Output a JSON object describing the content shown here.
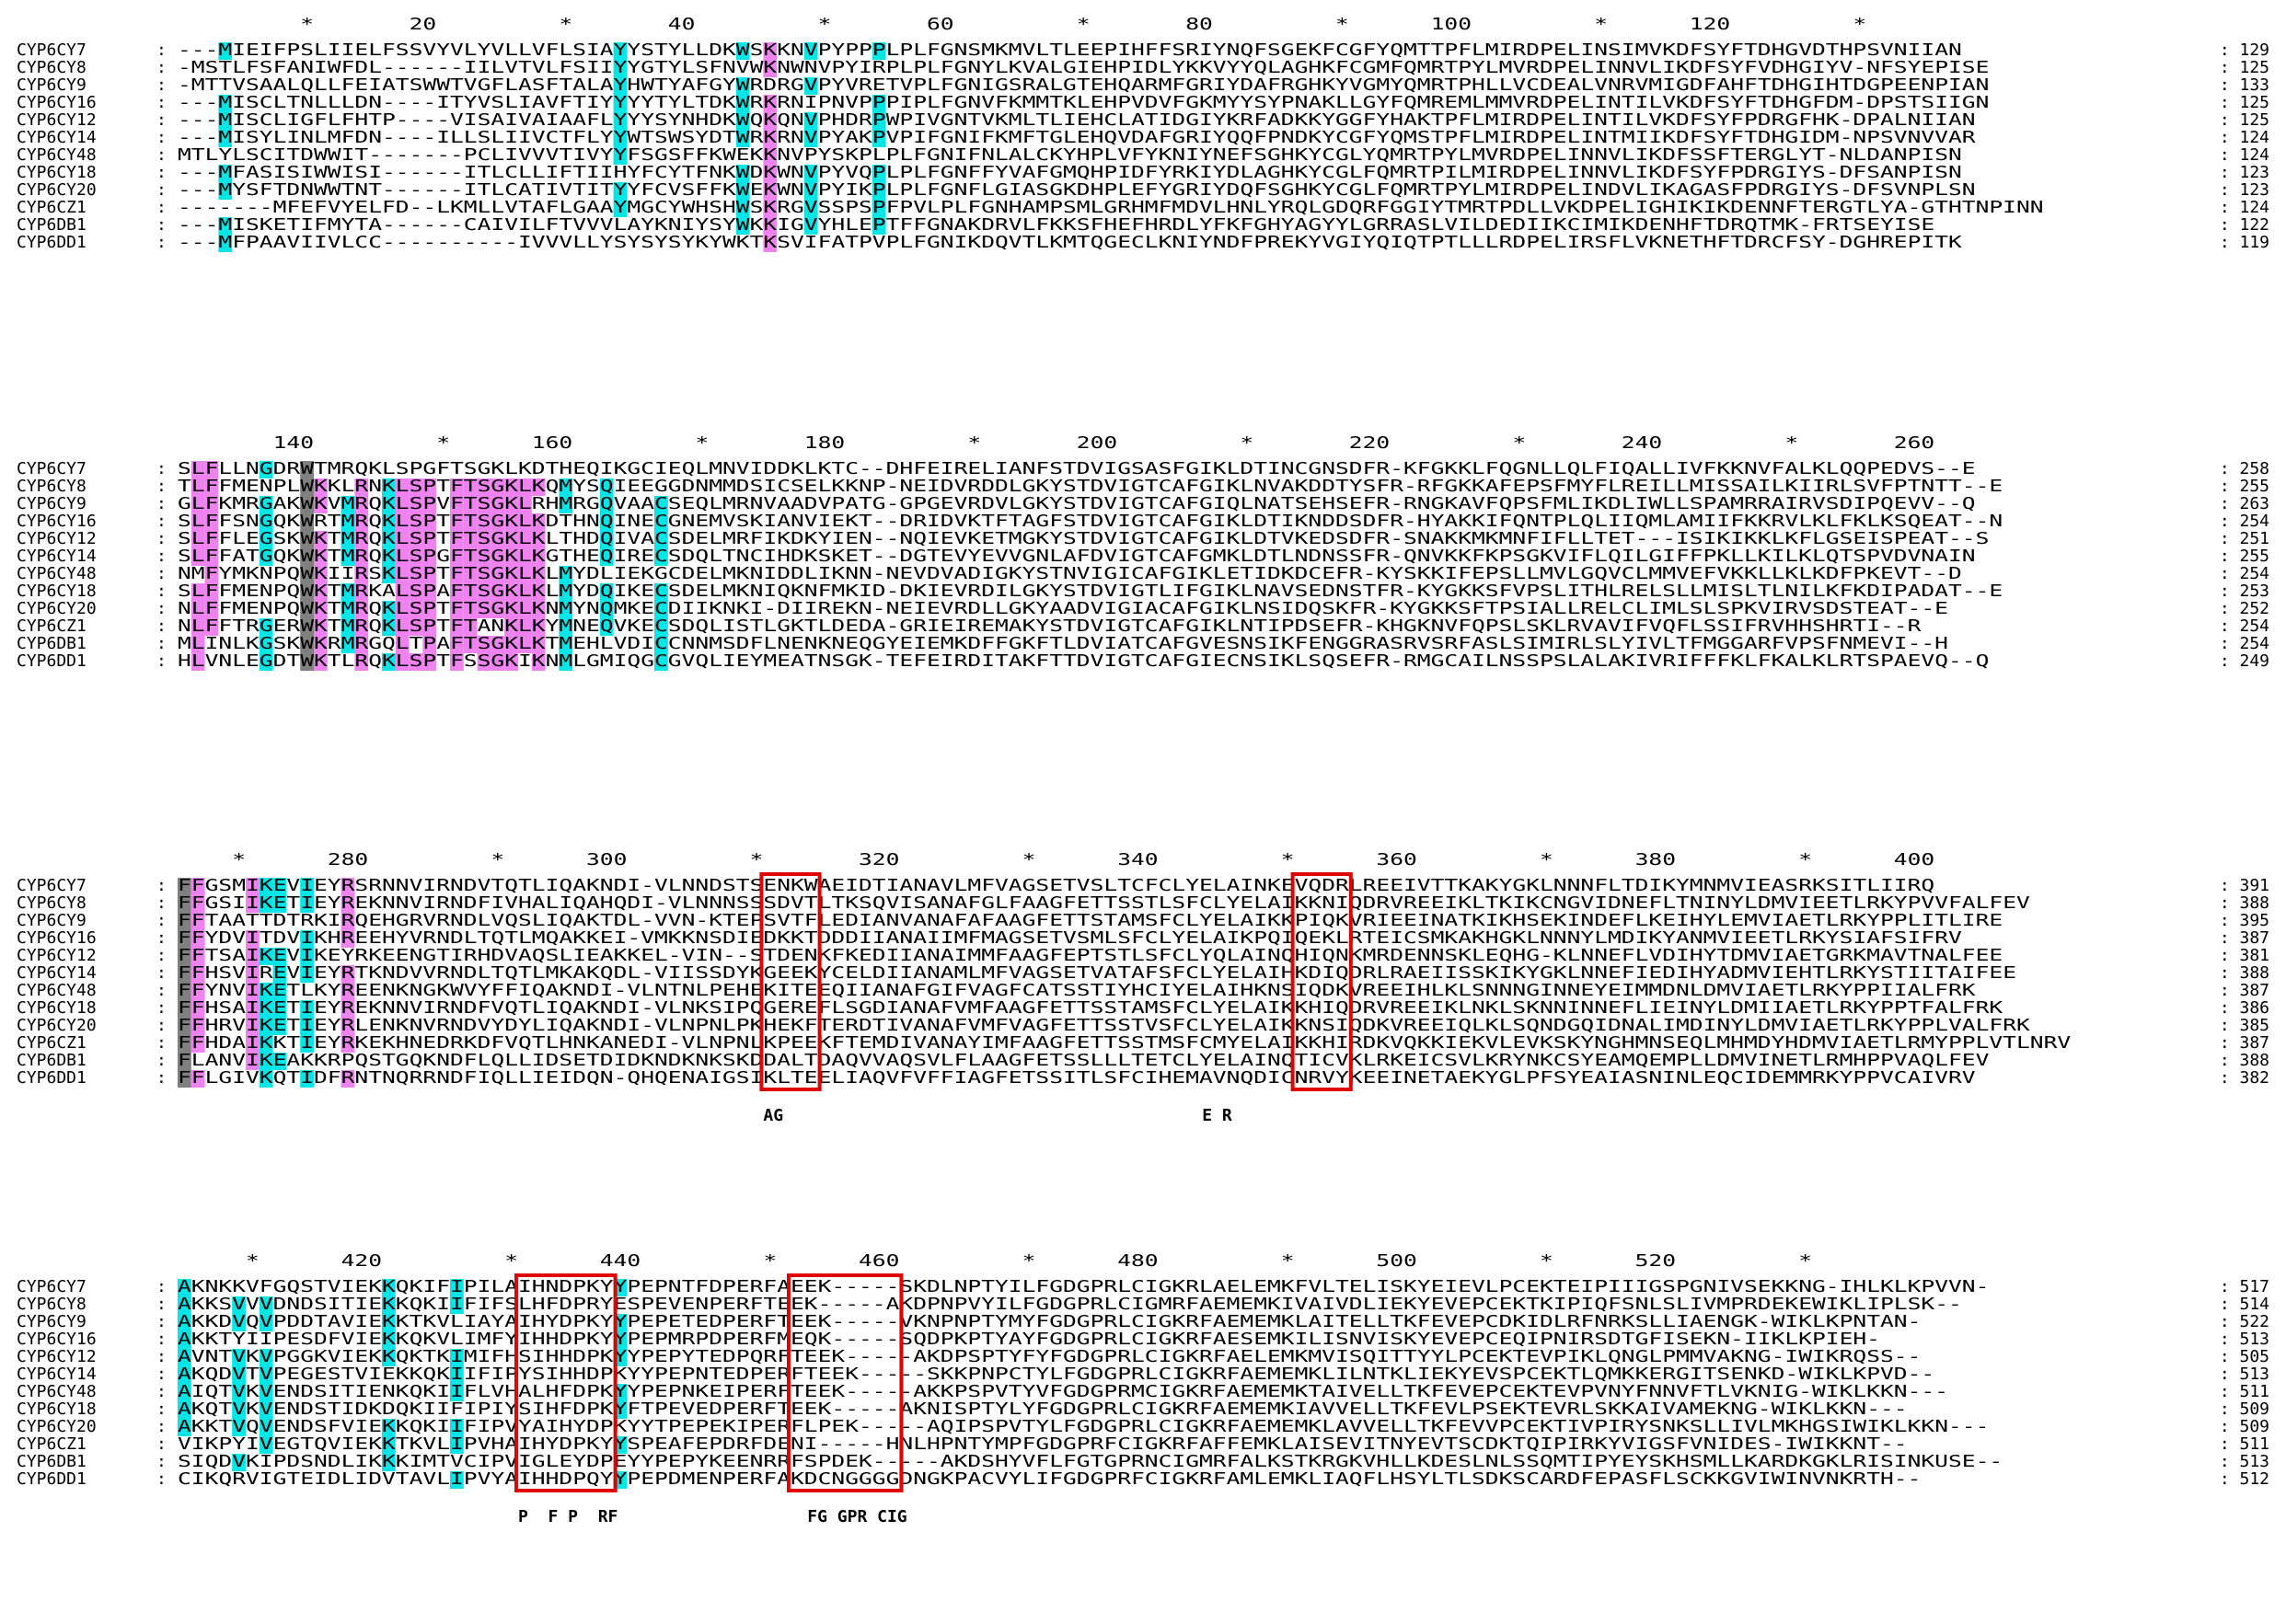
{
  "blocks": [
    {
      "ruler": "         *       20         *       40         *       60         *       80         *      100         *      120         *",
      "rows": [
        {
          "name": "CYP6CY7",
          "seq": "---MIEIFPSLIIELFSSVYVLYVLLVFLSIAYYSTYLLDKWSKKNVPYPPPLPLFGNSMKMVLTLEEPIHFFSRIYNQFSGEKFCGFYQMTTPFLMIRDPELINSIMVKDFSYFTDHGVDTHPSVNIIAN",
          "num": "129"
        },
        {
          "name": "CYP6CY8",
          "seq": "-MSTLFSFANIWFDL------IILVTVLFSIIYYGTYLSFNVWKNWNVPYIRPLPLFGNYLKVALGIEHPIDLYKKVYYQLAGHKFCGMFQMRTPYLMVRDPELINNVLIKDFSYFVDHGIYV-NFSYEPISE",
          "num": "125"
        },
        {
          "name": "CYP6CY9",
          "seq": "-MTTVSAALQLLFEIATSWWTVGFLASFTALAYHWTYAFGYWRDRGVPYVRETVPLFGNIGSRALGTEHQARMFGRIYDAFRGHKYVGMYQMRTPHLLVCDEALVNRVMIGDFAHFTDHGIHTDGPEENPIAN",
          "num": "133"
        },
        {
          "name": "CYP6CY16",
          "seq": "---MISCLTNLLLDN----ITYVSLIAVFTIYYYYTYLTDKWRKRNIPNVPPPIPLFGNVFKMMTKLEHPVDVFGKMYYSYPNAKLLGYFQMREMLMMVRDPELINTILVKDFSYFTDHGFDM-DPSTSIIGN",
          "num": "125"
        },
        {
          "name": "CYP6CY12",
          "seq": "---MISCLIGFLFHTP----VISAIVAIAAFLYYYSYNHDKWQKQNVPHDRPWPIVGNTVKMLTLIEHCLATIDGIYKRFADKKYGGFYHAKTPFLMIRDPELINTILVKDFSYFPDRGFHK-DPALNIIAN",
          "num": "125"
        },
        {
          "name": "CYP6CY14",
          "seq": "---MISYLINLMFDN----ILLSLIIVCTFLYYWTSWSYDTWRKRNVPYAKPVPIFGNIFKMFTGLEHQVDAFGRIYQQFPNDKYCGFYQMSTPFLMIRDPELINTMIIKDFSYFTDHGIDM-NPSVNVVAR",
          "num": "124"
        },
        {
          "name": "CYP6CY48",
          "seq": "MTLYLSCITDWWIT-------PCLIVVVTIVYYFSGSFFKWEKKNVPYSKPLPLFGNIFNLALCKYHPLVFYKNIYNEFSGHKYCGLYQMRTPYLMVRDPELINNVLIKDFSSFTERGLYT-NLDANPISN",
          "num": "124"
        },
        {
          "name": "CYP6CY18",
          "seq": "---MFASISIWWISI------ITLCLLIFTIIHYFCYTFNKWDKWNVPYVQPLPLFGNFFYVAFGMQHPIDFYRKIYDLAGHKYCGLFQMRTPILMIRDPELINNVLIKDFSYFPDRGIYS-DFSANPISN",
          "num": "123"
        },
        {
          "name": "CYP6CY20",
          "seq": "---MYSFTDNWWTNT------ITLCATIVTITYYFCVSFFKWEKWNVPYIKPLPLFGNFLGIASGKDHPLEFYGRIYDQFSGHKYCGLFQMRTPYLMIRDPELINDVLIKAGASFPDRGIYS-DFSVNPLSN",
          "num": "123"
        },
        {
          "name": "CYP6CZ1",
          "seq": "-------MFEFVYELFD--LKMLLVTAFLGAAYMGCYWHSHWSKRGVSSPSPFPVLPLFGNHAMPSMLGRHMFMDVLHNLYRQLGDQRFGGIYTMRTPDLLVKDPELIGHIKIKDENNFTERGTLYA-GTHTNPINN",
          "num": "124"
        },
        {
          "name": "CYP6DB1",
          "seq": "---MISKETIFMYTA------CAIVILFTVVVLAYKNIYSYWKKIGVYHLEPTFFGNAKDRVLFKKSFHEFHRDLYFKFGHYAGYYLGRRASLVILDEDIIKCIMIKDENHFTDRQTMK-FRTSEYISE",
          "num": "122"
        },
        {
          "name": "CYP6DD1",
          "seq": "---MFPAAVIIVLCC----------IVVVLLYSYSYSYKYWKTKSVIFATPVPLFGNIKDQVTLKMTQGECLKNIYNDFPREKYVGIYQIQTPTLLLRDPELIRSFLVKNETHFTDRCFSY-DGHREPITK",
          "num": "119"
        }
      ],
      "annotation": ""
    },
    {
      "ruler": "       140         *      160         *       180         *       200         *       220         *       240         *       260",
      "rows": [
        {
          "name": "CYP6CY7",
          "seq": "SLFLLNGDRWTMRQKLSPGFTSGKLKDTHEQIKGCIEQLMNVIDDKLKTC--DHFEIRELIANFSTDVIGSASFGIKLDTINCGNSDFR-KFGKKLFQGNLLQLFIQALLIVFKKNVFALKLQQPEDVS--E",
          "num": "258"
        },
        {
          "name": "CYP6CY8",
          "seq": "TLFFMENPLWKKLRNKLSPTFTSGKLKQMYSQIEEGGDNMMDSICSELKKNP-NEIDVRDDLGKYSTDVIGTCAFGIKLNVAKDDTYSFR-RFGKKAFEPSFMYFLREILLMISSAILKIIRLSVFPTNTT--E",
          "num": "255"
        },
        {
          "name": "CYP6CY9",
          "seq": "GLFKMRGAKWKVMRQKLSPVFTSGKLRHMRGQVAACSEQLMRNVAADVPATG-GPGEVRDVLGKYSTDVIGTCAFGIQLNATSEHSEFR-RNGKAVFQPSFMLIKDLIWLLSPAMRRAIRVSDIPQEVV--Q",
          "num": "263"
        },
        {
          "name": "CYP6CY16",
          "seq": "SLFFSNGQKWRTMRQKLSPTFTSGKLKDTHNQINECGNEMVSKIANVIEKT--DRIDVKTFTAGFSTDVIGTCAFGIKLDTIKNDDSDFR-HYAKKIFQNTPLQLIIQMLAMIIFKKRVLKLFKLKSQEAT--N",
          "num": "254"
        },
        {
          "name": "CYP6CY12",
          "seq": "SLFFLEGSKWKTMRQKLSPTFTSGKLKLTHDQIVACSDELMRFIKDKYIEN--NQIEVKETMGKYSTDVIGTCAFGIKLDTVKEDSDFR-SNAKKMKMNFIFLLTET---ISIKIKKLKFLGSEISPEAT--S",
          "num": "251"
        },
        {
          "name": "CYP6CY14",
          "seq": "SLFFATGQKWKTMRQKLSPGFTSGKLKGTHEQIRECSDQLTNCIHDKSKET--DGTEVYEVVGNLAFDVIGTCAFGMKLDTLNDNSSFR-QNVKKFKPSGKVIFLQILGIFFPKLLKILKLQTSPVDVNAIN",
          "num": "255"
        },
        {
          "name": "CYP6CY48",
          "seq": "NMFYMKNPQWKIIRSKLSPTFTSGKLKLMYDLIEKGCDELMKNIDDLIKNN-NEVDVADIGKYSTNVIGICAFGIKLETIDKDCEFR-KYSKKIFEPSLLMVLGQVCLMMVEFVKKLLKLKDFPKEVT--D",
          "num": "254"
        },
        {
          "name": "CYP6CY18",
          "seq": "SLFFMENPQWKTMRKALSPAFTSGKLKLMYDQIKECSDELMKNIQKNFMKID-DKIEVRDILGKYSTDVIGTLIFGIKLNAVSEDNSTFR-KYGKKSFVPSLITHLRELSLLMISLTLNILKFKDIPADAT--E",
          "num": "253"
        },
        {
          "name": "CYP6CY20",
          "seq": "NLFFMENPQWKTMRQKLSPTFTSGKLKNMYNQMKECDIIKNKI-DIIREKN-NEIEVRDLLGKYAADVIGIACAFGIKLNSIDQSKFR-KYGKKSFTPSIALLRELCLIMLSLSPKVIRVSDSTEAT--E",
          "num": "252"
        },
        {
          "name": "CYP6CZ1",
          "seq": "NLFFTRGERWKTMRQKLSPTFTANKLKYMNEQVKECSDQLISTLGKTLDEDA-GRIEIREMAKYSTDVIGTCAFGIKLNTIPDSEFR-KHGKNVFQPSLSKLRVAVIFVQFLSSIFRVHHSHRTI--R",
          "num": "254"
        },
        {
          "name": "CYP6DB1",
          "seq": "MLINLKGSKWKRMRGQLTPAFTSGKLKTMEHLVDICCNNMSDFLNENKNEQGYEIEMKDFFGKFTLDVIATCAFGVESNSIKFENGGRASRVSRFASLSIMIRLSLYIVLTFMGGARFVPSFNMEVI--H",
          "num": "254"
        },
        {
          "name": "CYP6DD1",
          "seq": "HLVNLEGDTWKTLRQKLSPTFSSGKIKNMLGMIQGCGVQLIEYMEATNSGK-TEFEIRDITAKFTTDVIGTCAFGIECNSIKLSQSEFR-RMGCAILNSSPSLALAKIVRIFFFKLFKALKLRTSPAEVQ--Q",
          "num": "249"
        }
      ],
      "annotation": ""
    },
    {
      "ruler": "    *      280         *      300         *       320         *      340         *      360         *      380         *      400",
      "rows": [
        {
          "name": "CYP6CY7",
          "seq": "FFGSMIKEVIEYRSRNNVIRNDVTQTLIQAKNDI-VLNNDSTSENKWAEIDTIANAVLMFVAGSETVSLTCFCLYELAINKEVQDRLREEIVTTKAKYGKLNNNFLTDIKYMNMVIEASRKSITLIIRQ",
          "num": "391"
        },
        {
          "name": "CYP6CY8",
          "seq": "FFGSIIKETIEYREKNNVIRNDFIVHALIQAHQDI-VLNNNSSSDVTLTKSQVISANAFGLFAAGFETTSSTLSFCLYELAIKKNIQDRVREEIKLTKIKCNGVIDNEFLTNINYLDMVIEETLRKYPVVFALFEV",
          "num": "388"
        },
        {
          "name": "CYP6CY9",
          "seq": "FFTAATTDTRKIRQEHGRVRNDLVQSLIQAKTDL-VVN-KTEPSVTFLEDIANVANAFAFAAGFETTSTAMSFCLYELAIKKPIQKVRIEEINATKIKHSEKINDEFLKEIHYLEMVIAETLRKYPPLITLIRE",
          "num": "395"
        },
        {
          "name": "CYP6CY16",
          "seq": "FFYDVITDVIKHREEHYVRNDLTQTLMQAKKEI-VMKKNSDIEDKKTDDDIIANAIIMFMAGSETVSMLSFCLYELAIKPQIQEKLRTEICSMKAKHGKLNNNYLMDIKYANMVIEETLRKYSIAFSIFRV",
          "num": "387"
        },
        {
          "name": "CYP6CY12",
          "seq": "FFTSAIKEVIKEYRKEENGTIRHDVAQSLIEAKKEL-VIN--STDENKFKEDIIANAIMMFAAGFEPTSTLSFCLYQLAINQHIQNKMRDENNSKLEQHG-KLNNEFLVDIHYTDMVIAETGRKMAVTNALFEE",
          "num": "381"
        },
        {
          "name": "CYP6CY14",
          "seq": "FFHSVIREVIEYRTKNDVVRNDLTQTLMKAKQDL-VIISSDYKGEEKYCELDIIANAMLMFVAGSETVATAFSFCLYELAIHKDIQDRLRAEIISSKIKYGKLNNEFIEDIHYADMVIEHTLRKYSTIITAIFEE",
          "num": "388"
        },
        {
          "name": "CYP6CY48",
          "seq": "FFYNVIKETLKYREENKNGKWVYFFIQAKNDI-VLNTNLPEHEKITEEQIIANAFGIFVAGFCATSSTIYHCIYELAIHKNSIQDKVREEIHLKLSNNNGINNEYEIMMDNLDMVIAETLRKYPPIIALFRK",
          "num": "387"
        },
        {
          "name": "CYP6CY18",
          "seq": "FFHSAIKETIEYREKNNVIRNDFVQTLIQAKNDI-VLNKSIPQGEREFLSGDIANAFVMFAAGFETTSSTAMSFCLYELAIKKHIQDRVREEIKLNKLSKNNINNEFLIEINYLDMIIAETLRKYPPTFALFRK",
          "num": "386"
        },
        {
          "name": "CYP6CY20",
          "seq": "FFHRVIKETIEYRLENKNVRNDVYDYLIQAKNDI-VLNPNLPKHEKFTERDTIVANAFVMFVAGFETTSSTVSFCLYELAIKKNSIQDKVREEIQLKLSQNDGQIDNALIMDINYLDMVIAETLRKYPPLVALFRK",
          "num": "385"
        },
        {
          "name": "CYP6CZ1",
          "seq": "FFHDAIKKTIEYRKEKHNEDRKDFVQTLHNKANEDI-VLNPNLKPEEKFTEMDIVANAYIMFAAGFETTSSTMSFCMYELAIKKHIRDKVQKKIEKVLEVKSKYNGHMNSEQLMHMDYHDMVIAETLRMYPPLVTLNRV",
          "num": "387"
        },
        {
          "name": "CYP6DB1",
          "seq": "FLANVIKEAKKRPQSTGQKNDFLQLLIDSETDIDKNDKNKSKDDALTDAQVVAQSVLFLAAGFETSSLLLTETCLYELAINQTICVKLRKEICSVLKRYNKCSYEAMQEMPLLDMVINETLRMHPPVAQLFEV",
          "num": "388"
        },
        {
          "name": "CYP6DD1",
          "seq": "FFLGIVKQTIDFRNTNQRRNDFIQLLIEIDQN-QHQENAIGSIKLTEELIAQVFVFFIAGFETSSITLSFCIHEMAVNQDICNRVYKEEINETAEKYGLPFSYEAIASNINLEQCIDEMMRKYPPVCAIVRV",
          "num": "382"
        }
      ],
      "annotation": "AG                                          E R"
    },
    {
      "ruler": "     *      420         *      440         *      460         *      480         *      500         *      520         *",
      "rows": [
        {
          "name": "CYP6CY7",
          "seq": "AKNKKVFGQSTVIEKKQKIFIPILAIHNDPKYYPEPNTFDPERFAEEK-----SKDLNPTYILFGDGPRLCIGKRLAELEMKFVLTELISKYEIEVLPCEKTEIPIIIGSPGNIVSEKKNG-IHLKLKPVVN-",
          "num": "517"
        },
        {
          "name": "CYP6CY8",
          "seq": "AKKSVVVDNDSITIEKKQKIIFIFSLHFDPRYESPEVENPERFTEEK-----AKDPNPVYILFGDGPRLCIGMRFAEMEMKIVAIVDLIEKYEVEPCEKTKIPIQFSNLSLIVMPRDEKEWIKLIPLSK--",
          "num": "514"
        },
        {
          "name": "CYP6CY9",
          "seq": "AKKDVQVPDDTAVIEKKTKVLIAYAIHYDPKYYPEPETEDPERFTEEK-----VKNPNPTYMYFGDGPRLCIGKRFAEMEMKLAITELLTKFEVEPCDKIDLRFNRKSLLIAENGK-WIKLKPNTAN-",
          "num": "522"
        },
        {
          "name": "CYP6CY16",
          "seq": "AKKTYIIPESDFVIEKKQKVLIMFYIHHDPKYYPEPMRPDPERFMEQK-----SQDPKPTYAYFGDGPRLCIGKRFAESEMKILISNVISKYEVEPCEQIPNIRSDTGFISEKN-IIKLKPIEH-",
          "num": "513"
        },
        {
          "name": "CYP6CY12",
          "seq": "AVNTVKVPGGKVIEKKQKTKIMIFHSIHHDPKYYPEPYTEDPQRFTEEK-----AKDPSPTYFYFGDGPRLCIGKRFAELEMKMVISQITTYYLPCEKTEVPIKLQNGLPMMVAKNG-IWIKRQSS--",
          "num": "505"
        },
        {
          "name": "CYP6CY14",
          "seq": "AKQDVTVPEGESTVIEKKQKIIFIPYSIHHDPKYYPEPNTEDPERFTEEK-----SKKPNPCTYLFGDGPRLCIGKRFAEMEMKLILNTKLIEKYEVSPCEKTLQMKKERGITSENKD-WIKLKPVD--",
          "num": "513"
        },
        {
          "name": "CYP6CY48",
          "seq": "AIQTVKVENDSITIENKQKIIFLVHALHFDPKYYPEPNKEIPERFTEEK-----AKKPSPVTYVFGDGPRMCIGKRFAEMEMKTAIVELLTKFEVEPCEKTEVPVNYFNNVFTLVKNIG-WIKLKKN---",
          "num": "511"
        },
        {
          "name": "CYP6CY18",
          "seq": "AKQTVKVENDSTIDKDQKIIFIPIYSIHFDPKYFTPEVEDPERFTEEK-----AKNISPTYLYFGDGPRLCIGKRFAEMEMKIAVVELLTKFEVLPSEKTEVRLSKKAIVAMEKNG-WIKLKKN---",
          "num": "509"
        },
        {
          "name": "CYP6CY20",
          "seq": "AKKTVQVENDSFVIEKKQKIIFIPVYAIHYDPKYYTPEPEKIPERFLPEK-----AQIPSPVTYLFGDGPRLCIGKRFAEMEMKLAVVELLTKFEVVPCEKTIVPIRYSNKSLLIVLMKHGSIWIKLKKN---",
          "num": "509"
        },
        {
          "name": "CYP6CZ1",
          "seq": "VIKPYIVEGTQVIEKKTKVLIPVHAIHYDPKYYSPEAFEPDRFDENI-----HNLHPNTYMPFGDGPRFCIGKRFAFFEMKLAISEVITNYEVTSCDKTQIPIRKYVIGSFVNIDES-IWIKKNT--",
          "num": "511"
        },
        {
          "name": "CYP6DB1",
          "seq": "SIQDVKIPDSNDLIKKKIMTVCIPVIGLEYDPEYYPEPYKEENRRFSPDEK-----AKDSHYVFLFGTGPRNCIGMRFALKSTKRGKVHLLKDESLNLSSQMTIPYEYSKHSMLLKARDKGKLRISINKUSE--",
          "num": "513"
        },
        {
          "name": "CYP6DD1",
          "seq": "CIKQRVIGTEIDLIDVTAVLIPVYAIHHDPQYYPEPDMENPERFAKDCNGGGGDNGKPACVYLIFGDGPRFCIGKRFAMLEMKLIAQFLHSYLTLSDKSCARDFEPASFLSCKKGVIWINVNKRTH--",
          "num": "512"
        }
      ],
      "annotation": "P  F P  RF                   FG GPR CIG"
    }
  ],
  "highlight_labels": {
    "block3": [
      "AG",
      "E",
      "R"
    ],
    "block4": [
      "P",
      "F",
      "P",
      "RF",
      "FG",
      "GPR",
      "CIG"
    ]
  },
  "colors": {
    "background": "#ffffff",
    "text": "#000000",
    "identical": "#808080",
    "high_conservation": "#ee82ee",
    "medium_conservation": "#00e5e5",
    "motif_box": "#e00000"
  }
}
